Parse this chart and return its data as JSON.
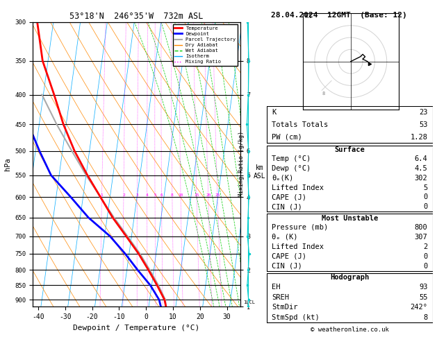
{
  "title_left": "53°18'N  246°35'W  732m ASL",
  "title_right": "28.04.2024  12GMT  (Base: 12)",
  "xlabel": "Dewpoint / Temperature (°C)",
  "ylabel_left": "hPa",
  "pressure_levels": [
    300,
    350,
    400,
    450,
    500,
    550,
    600,
    650,
    700,
    750,
    800,
    850,
    900
  ],
  "p_min": 300,
  "p_max": 925,
  "xlim": [
    -42,
    35
  ],
  "skew_slope": 13.0,
  "temp_profile_p": [
    925,
    900,
    850,
    800,
    750,
    700,
    650,
    600,
    550,
    500,
    450,
    400,
    350,
    300
  ],
  "temp_profile_t": [
    6.4,
    5.5,
    2.0,
    -2.0,
    -6.5,
    -12.0,
    -18.0,
    -23.5,
    -29.5,
    -35.5,
    -41.0,
    -46.0,
    -52.0,
    -56.0
  ],
  "dewp_profile_p": [
    925,
    900,
    850,
    800,
    750,
    700,
    650,
    600,
    550,
    500,
    450,
    400,
    350,
    300
  ],
  "dewp_profile_t": [
    4.5,
    3.5,
    -0.5,
    -6.0,
    -11.5,
    -18.0,
    -27.0,
    -34.5,
    -43.0,
    -48.5,
    -54.0,
    -56.0,
    -57.0,
    -65.0
  ],
  "parcel_profile_p": [
    925,
    900,
    850,
    800,
    750,
    700,
    650,
    600,
    550,
    500,
    450,
    400
  ],
  "parcel_profile_t": [
    6.4,
    5.8,
    2.5,
    -1.5,
    -6.0,
    -11.5,
    -17.5,
    -23.5,
    -30.0,
    -36.5,
    -43.5,
    -50.5
  ],
  "lcl_pressure": 910,
  "isotherm_color": "#00aaff",
  "dry_adiabat_color": "#ff8800",
  "wet_adiabat_color": "#00cc00",
  "mixing_ratio_color": "#ff00ff",
  "temp_color": "#ff0000",
  "dewp_color": "#0000ff",
  "parcel_color": "#aaaaaa",
  "wind_profile_color": "#00cccc",
  "mixing_ratio_labels": [
    1,
    2,
    3,
    4,
    5,
    6,
    8,
    10,
    15,
    20,
    25
  ],
  "km_asl": {
    "1": 925,
    "2": 800,
    "3": 700,
    "4": 600,
    "5": 550,
    "6": 500,
    "7": 400,
    "8": 350
  },
  "wind_p": [
    925,
    900,
    850,
    800,
    750,
    700,
    650,
    600,
    550,
    500,
    450,
    400,
    350,
    300
  ],
  "wind_x": [
    0.0,
    0.1,
    -0.15,
    0.05,
    0.2,
    -0.1,
    0.0,
    0.15,
    -0.05,
    0.1,
    -0.2,
    0.05,
    0.15,
    -0.1
  ],
  "right_panel": {
    "K": 23,
    "TotTot": 53,
    "PW": "1.28",
    "SurfTemp": "6.4",
    "SurfDewp": "4.5",
    "SurfTheta": 302,
    "LiftedIndex": 5,
    "CAPE_surf": 0,
    "CIN_surf": 0,
    "MU_Pressure": 800,
    "MU_Theta": 307,
    "MU_LiftedIndex": 2,
    "MU_CAPE": 0,
    "MU_CIN": 0,
    "EH": 93,
    "SREH": 55,
    "StmDir": "242°",
    "StmSpd": 8
  }
}
